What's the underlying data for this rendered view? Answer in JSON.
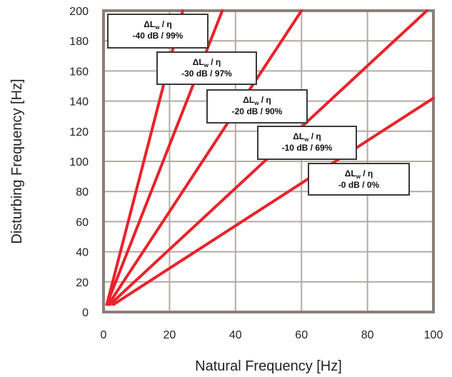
{
  "chart_data": {
    "type": "line",
    "xlabel": "Natural Frequency [Hz]",
    "ylabel": "Disturbing Frequency [Hz]",
    "xlim": [
      0,
      100
    ],
    "ylim": [
      0,
      200
    ],
    "x_ticks": [
      "0",
      "20",
      "40",
      "60",
      "80",
      "100"
    ],
    "y_ticks": [
      "0",
      "20",
      "40",
      "60",
      "80",
      "100",
      "120",
      "140",
      "160",
      "180",
      "200"
    ],
    "grid": true,
    "line_color": "#e8232a",
    "plot_background": "#ffffff",
    "frame_color": "#8c7f7a",
    "grid_color": "#b3aaa6",
    "series": [
      {
        "label_top": "ΔLw / η",
        "label_bottom": "-40 dB / 99%",
        "points": [
          [
            1,
            5
          ],
          [
            24,
            200
          ]
        ]
      },
      {
        "label_top": "ΔLw / η",
        "label_bottom": "-30 dB / 97%",
        "points": [
          [
            1,
            5
          ],
          [
            36,
            200
          ]
        ]
      },
      {
        "label_top": "ΔLw / η",
        "label_bottom": "-20 dB / 90%",
        "points": [
          [
            1.5,
            5
          ],
          [
            60,
            200
          ]
        ]
      },
      {
        "label_top": "ΔLw / η",
        "label_bottom": "-10 dB / 69%",
        "points": [
          [
            2,
            5
          ],
          [
            98,
            200
          ]
        ]
      },
      {
        "label_top": "ΔLw / η",
        "label_bottom": "-0 dB / 0%",
        "points": [
          [
            3,
            5
          ],
          [
            100,
            142
          ]
        ]
      }
    ]
  }
}
